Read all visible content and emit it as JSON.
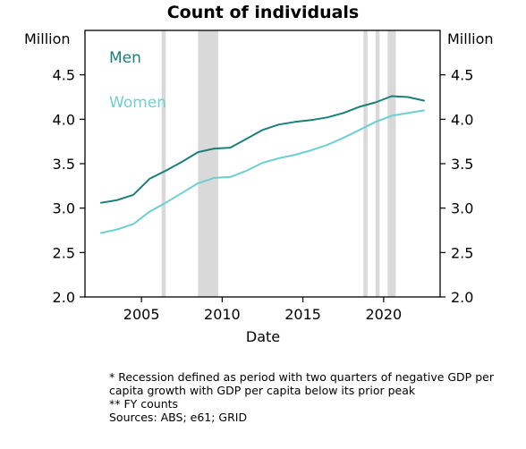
{
  "chart_data": {
    "type": "line",
    "title": "Count of individuals",
    "xlabel": "Date",
    "ylabel_left": "Million",
    "ylabel_right": "Million",
    "xlim": [
      2001.5,
      2023.5
    ],
    "ylim": [
      2.0,
      5.0
    ],
    "x_ticks": [
      2005,
      2010,
      2015,
      2020
    ],
    "y_ticks": [
      2.0,
      2.5,
      3.0,
      3.5,
      4.0,
      4.5
    ],
    "y_tick_labels": [
      "2.0",
      "2.5",
      "3.0",
      "3.5",
      "4.0",
      "4.5"
    ],
    "recession_bands": [
      [
        2006.25,
        2006.5
      ],
      [
        2008.5,
        2009.75
      ],
      [
        2018.75,
        2019.0
      ],
      [
        2019.5,
        2019.75
      ],
      [
        2020.25,
        2020.75
      ]
    ],
    "series": [
      {
        "name": "Men",
        "color": "#1a7f78",
        "x": [
          2002.5,
          2003.5,
          2004.5,
          2005.5,
          2006.5,
          2007.5,
          2008.5,
          2009.5,
          2010.5,
          2011.5,
          2012.5,
          2013.5,
          2014.5,
          2015.5,
          2016.5,
          2017.5,
          2018.5,
          2019.5,
          2020.5,
          2021.5,
          2022.5
        ],
        "values": [
          3.06,
          3.09,
          3.15,
          3.33,
          3.42,
          3.52,
          3.63,
          3.67,
          3.68,
          3.78,
          3.88,
          3.94,
          3.97,
          3.99,
          4.02,
          4.07,
          4.14,
          4.19,
          4.26,
          4.25,
          4.21
        ]
      },
      {
        "name": "Women",
        "color": "#6dcfcf",
        "x": [
          2002.5,
          2003.5,
          2004.5,
          2005.5,
          2006.5,
          2007.5,
          2008.5,
          2009.5,
          2010.5,
          2011.5,
          2012.5,
          2013.5,
          2014.5,
          2015.5,
          2016.5,
          2017.5,
          2018.5,
          2019.5,
          2020.5,
          2021.5,
          2022.5
        ],
        "values": [
          2.72,
          2.76,
          2.82,
          2.96,
          3.06,
          3.17,
          3.28,
          3.34,
          3.35,
          3.42,
          3.51,
          3.56,
          3.6,
          3.65,
          3.71,
          3.79,
          3.88,
          3.97,
          4.04,
          4.07,
          4.1
        ]
      }
    ],
    "legend": [
      {
        "label": "Men",
        "color": "#1a7f78"
      },
      {
        "label": "Women",
        "color": "#6dcfcf"
      }
    ],
    "band_color": "#d9d9d9"
  },
  "notes": [
    "* Recession defined as period with two quarters of negative GDP per capita growth with GDP per capita below its prior peak",
    "** FY counts",
    "Sources: ABS; e61; GRID"
  ]
}
